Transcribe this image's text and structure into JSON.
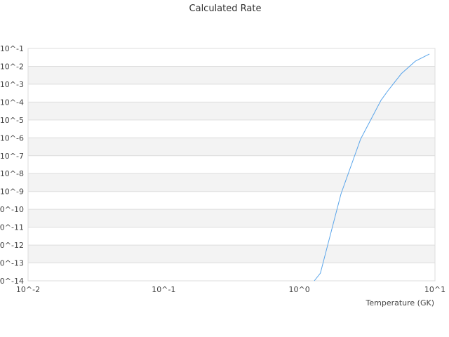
{
  "chart_data": {
    "type": "line",
    "title": "Calculated Rate",
    "xlabel": "Temperature (GK)",
    "ylabel": "",
    "xscale": "log",
    "yscale": "log",
    "xlim": [
      0.01,
      10
    ],
    "ylim": [
      1e-14,
      0.1
    ],
    "x_ticks": [
      "10^-2",
      "10^-1",
      "10^0",
      "10^1"
    ],
    "y_ticks": [
      "10^-1",
      "10^-2",
      "10^-3",
      "10^-4",
      "10^-5",
      "10^-6",
      "10^-7",
      "10^-8",
      "10^-9",
      "10^-10",
      "10^-11",
      "10^-12",
      "10^-13",
      "10^-14"
    ],
    "grid": true,
    "alternating_bands": true,
    "line_color": "#5aa5ea",
    "band_color": "#f3f3f3",
    "series": [
      {
        "x": [
          1.29,
          1.43,
          2.03,
          2.83,
          4.0,
          4.51,
          5.65,
          7.17,
          9.1
        ],
        "y": [
          1e-14,
          2.7e-14,
          7.4e-10,
          8.5e-07,
          0.000126,
          0.00044,
          0.0039,
          0.0195,
          0.049
        ]
      }
    ]
  }
}
